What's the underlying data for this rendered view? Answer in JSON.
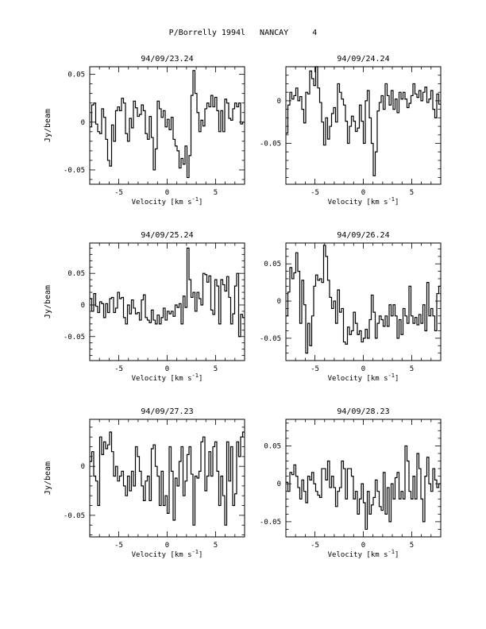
{
  "page": {
    "title": "P/Borrelly 1994l   NANCAY     4"
  },
  "chart_data": [
    {
      "type": "line",
      "title": "94/09/23.24",
      "xlabel": "Velocity [km s⁻¹]",
      "ylabel": "Jy/beam",
      "xlim": [
        -8,
        8
      ],
      "ylim": [
        -0.065,
        0.058
      ],
      "xticks": [
        -5,
        0,
        5
      ],
      "yticks": [
        0.05,
        0,
        -0.05
      ],
      "yticklabels": [
        "0.05",
        "0",
        "-0.05"
      ],
      "series": [
        {
          "values": [
            -0.005,
            0.018,
            0.02,
            -0.002,
            -0.01,
            -0.012,
            0.014,
            0.005,
            -0.018,
            -0.04,
            -0.046,
            -0.003,
            -0.02,
            0.012,
            0.016,
            0.012,
            0.025,
            0.02,
            -0.012,
            -0.02,
            0.004,
            -0.006,
            0.022,
            0.015,
            0.006,
            0.008,
            0.018,
            0.012,
            -0.012,
            -0.018,
            0.006,
            -0.016,
            -0.05,
            -0.028,
            0.022,
            0.014,
            0.005,
            0.012,
            -0.005,
            0.003,
            -0.008,
            0.005,
            -0.018,
            -0.025,
            -0.03,
            -0.048,
            -0.038,
            -0.044,
            -0.025,
            -0.058,
            -0.035,
            0.028,
            0.054,
            0.03,
            0.01,
            -0.01,
            0.002,
            -0.004,
            0.014,
            0.02,
            0.016,
            0.028,
            0.016,
            0.026,
            0.012,
            -0.01,
            0.012,
            -0.01,
            0.024,
            0.02,
            0.004,
            0.002,
            0.014,
            0.02,
            0.016,
            0.02,
            -0.002,
            0.0
          ]
        }
      ]
    },
    {
      "type": "line",
      "title": "94/09/24.24",
      "xlabel": "Velocity [km s⁻¹]",
      "ylabel": "",
      "xlim": [
        -8,
        8
      ],
      "ylim": [
        -0.098,
        0.04
      ],
      "xticks": [
        -5,
        0,
        5
      ],
      "yticks": [
        0,
        -0.05
      ],
      "yticklabels": [
        "0",
        "-0.05"
      ],
      "series": [
        {
          "values": [
            -0.038,
            -0.005,
            0.01,
            0.002,
            0.006,
            0.015,
            0.0,
            0.005,
            -0.01,
            -0.026,
            0.01,
            0.008,
            0.035,
            0.026,
            0.018,
            0.04,
            0.015,
            -0.002,
            -0.025,
            -0.052,
            -0.02,
            -0.045,
            -0.03,
            -0.015,
            -0.008,
            -0.025,
            0.02,
            0.01,
            0.002,
            -0.005,
            -0.024,
            -0.05,
            -0.03,
            -0.018,
            -0.024,
            -0.036,
            -0.032,
            -0.005,
            -0.024,
            -0.05,
            0.0,
            0.012,
            -0.02,
            -0.05,
            -0.088,
            -0.06,
            -0.012,
            -0.002,
            0.006,
            -0.01,
            0.02,
            0.006,
            -0.005,
            0.012,
            -0.01,
            0.002,
            -0.014,
            0.01,
            0.002,
            0.01,
            0.002,
            -0.008,
            -0.003,
            0.006,
            0.02,
            0.008,
            0.004,
            0.012,
            0.0,
            0.01,
            0.016,
            -0.002,
            0.002,
            0.012,
            -0.01,
            -0.02,
            0.008,
            -0.004
          ]
        }
      ]
    },
    {
      "type": "line",
      "title": "94/09/25.24",
      "xlabel": "Velocity [km s⁻¹]",
      "ylabel": "Jy/beam",
      "xlim": [
        -8,
        8
      ],
      "ylim": [
        -0.088,
        0.098
      ],
      "xticks": [
        -5,
        0,
        5
      ],
      "yticks": [
        0.05,
        0,
        -0.05
      ],
      "yticklabels": [
        "0.05",
        "0",
        "-0.05"
      ],
      "series": [
        {
          "values": [
            0.01,
            -0.01,
            0.018,
            -0.002,
            -0.012,
            0.005,
            0.002,
            -0.02,
            0.002,
            -0.012,
            0.01,
            0.012,
            -0.012,
            -0.005,
            0.02,
            0.01,
            0.012,
            -0.02,
            -0.03,
            0.0,
            -0.014,
            0.008,
            -0.005,
            -0.014,
            -0.012,
            -0.024,
            0.008,
            0.016,
            -0.02,
            -0.024,
            -0.028,
            -0.008,
            -0.024,
            -0.03,
            -0.016,
            -0.03,
            -0.02,
            -0.005,
            -0.024,
            -0.01,
            -0.014,
            -0.01,
            -0.018,
            0.0,
            -0.004,
            0.002,
            -0.03,
            0.014,
            -0.004,
            0.09,
            0.04,
            0.012,
            0.02,
            -0.01,
            0.02,
            0.01,
            0.0,
            0.05,
            0.048,
            0.036,
            0.046,
            -0.008,
            -0.015,
            0.04,
            0.03,
            -0.03,
            0.04,
            0.032,
            0.022,
            0.045,
            0.012,
            -0.03,
            -0.014,
            0.03,
            0.05,
            -0.05,
            -0.015,
            -0.02
          ]
        }
      ]
    },
    {
      "type": "line",
      "title": "94/09/26.24",
      "xlabel": "Velocity [km s⁻¹]",
      "ylabel": "",
      "xlim": [
        -8,
        8
      ],
      "ylim": [
        -0.08,
        0.078
      ],
      "xticks": [
        -5,
        0,
        5
      ],
      "yticks": [
        0.05,
        0,
        -0.05
      ],
      "yticklabels": [
        "0.05",
        "0",
        "-0.05"
      ],
      "series": [
        {
          "values": [
            -0.02,
            0.012,
            0.045,
            0.03,
            0.038,
            0.065,
            0.04,
            -0.03,
            0.028,
            -0.005,
            -0.07,
            -0.03,
            -0.06,
            -0.02,
            0.02,
            0.035,
            0.028,
            0.03,
            0.025,
            0.075,
            0.06,
            0.028,
            0.005,
            -0.01,
            0.0,
            -0.03,
            0.015,
            -0.015,
            -0.01,
            -0.055,
            -0.058,
            -0.035,
            -0.045,
            -0.04,
            -0.015,
            -0.03,
            -0.045,
            -0.04,
            -0.055,
            -0.05,
            -0.038,
            -0.05,
            -0.025,
            0.008,
            -0.015,
            -0.05,
            -0.03,
            -0.02,
            -0.025,
            -0.034,
            -0.02,
            -0.034,
            -0.005,
            -0.02,
            -0.005,
            -0.02,
            -0.05,
            -0.025,
            -0.045,
            -0.01,
            -0.02,
            -0.03,
            0.02,
            -0.02,
            -0.03,
            -0.022,
            -0.032,
            -0.018,
            -0.03,
            -0.005,
            -0.04,
            0.025,
            -0.02,
            -0.01,
            -0.02,
            -0.04,
            0.01,
            0.02
          ]
        }
      ]
    },
    {
      "type": "line",
      "title": "94/09/27.23",
      "xlabel": "Velocity [km s⁻¹]",
      "ylabel": "Jy/beam",
      "xlim": [
        -8,
        8
      ],
      "ylim": [
        -0.072,
        0.048
      ],
      "xticks": [
        -5,
        0,
        5
      ],
      "yticks": [
        0,
        -0.05
      ],
      "yticklabels": [
        "0",
        "-0.05"
      ],
      "series": [
        {
          "values": [
            0.005,
            0.015,
            -0.01,
            -0.015,
            -0.04,
            0.03,
            0.012,
            0.025,
            0.018,
            0.022,
            0.035,
            0.015,
            -0.01,
            0.0,
            -0.015,
            -0.01,
            -0.005,
            -0.02,
            -0.03,
            -0.01,
            -0.025,
            -0.005,
            -0.02,
            0.02,
            0.01,
            -0.005,
            -0.02,
            -0.035,
            -0.015,
            -0.01,
            -0.035,
            0.018,
            0.022,
            0.0,
            -0.01,
            -0.04,
            -0.005,
            -0.04,
            -0.03,
            -0.048,
            0.02,
            -0.005,
            -0.055,
            -0.012,
            -0.02,
            0.005,
            0.02,
            -0.03,
            -0.015,
            0.012,
            0.02,
            -0.008,
            -0.06,
            -0.01,
            -0.012,
            -0.005,
            0.025,
            0.03,
            -0.025,
            -0.01,
            0.015,
            -0.01,
            0.02,
            0.025,
            -0.005,
            -0.04,
            -0.01,
            -0.03,
            -0.06,
            0.025,
            -0.015,
            0.02,
            -0.04,
            -0.028,
            0.025,
            0.01,
            0.03,
            0.035
          ]
        }
      ]
    },
    {
      "type": "line",
      "title": "94/09/28.23",
      "xlabel": "Velocity [km s⁻¹]",
      "ylabel": "",
      "xlim": [
        -8,
        8
      ],
      "ylim": [
        -0.07,
        0.085
      ],
      "xticks": [
        -5,
        0,
        5
      ],
      "yticks": [
        0.05,
        0,
        -0.05
      ],
      "yticklabels": [
        "0.05",
        "0",
        "-0.05"
      ],
      "series": [
        {
          "values": [
            0.002,
            -0.01,
            0.015,
            0.012,
            0.025,
            0.01,
            -0.005,
            -0.02,
            0.005,
            -0.01,
            -0.025,
            0.01,
            0.005,
            0.015,
            0.0,
            -0.01,
            -0.015,
            -0.018,
            0.02,
            0.02,
            0.005,
            0.03,
            -0.005,
            0.01,
            -0.005,
            -0.03,
            -0.01,
            -0.005,
            0.03,
            0.02,
            -0.02,
            0.02,
            0.02,
            0.01,
            -0.02,
            -0.01,
            -0.04,
            -0.02,
            0.0,
            -0.025,
            -0.06,
            -0.01,
            -0.04,
            -0.028,
            -0.018,
            0.005,
            -0.01,
            -0.03,
            -0.035,
            0.015,
            -0.04,
            -0.005,
            -0.05,
            0.0,
            -0.02,
            0.008,
            0.015,
            -0.02,
            -0.01,
            -0.02,
            0.05,
            0.03,
            -0.01,
            -0.02,
            0.01,
            -0.02,
            0.04,
            0.02,
            -0.02,
            -0.05,
            0.01,
            0.035,
            0.0,
            -0.01,
            0.02,
            0.005,
            -0.005,
            0.0
          ]
        }
      ]
    }
  ]
}
